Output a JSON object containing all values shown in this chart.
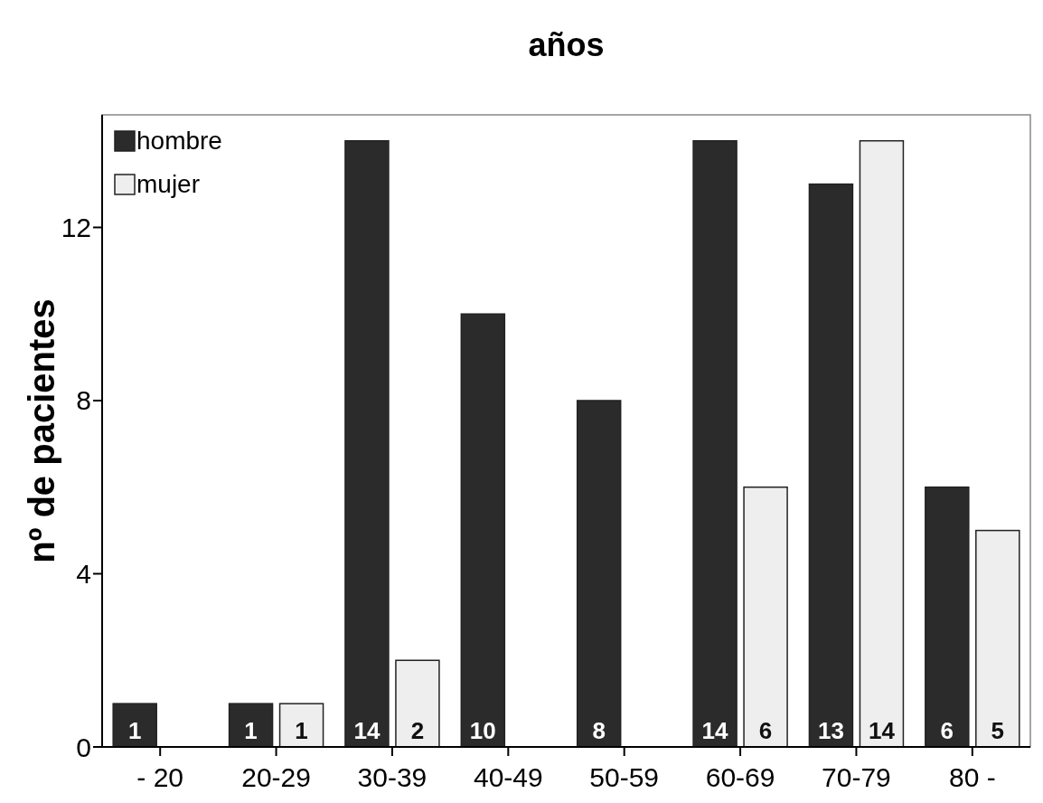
{
  "chart_data": {
    "type": "bar",
    "title": "años",
    "ylabel": "nº de pacientes",
    "categories": [
      "- 20",
      "20-29",
      "30-39",
      "40-49",
      "50-59",
      "60-69",
      "70-79",
      "80 -"
    ],
    "series": [
      {
        "name": "hombre",
        "color": "#2b2b2b",
        "values": [
          1,
          1,
          14,
          10,
          8,
          14,
          13,
          6
        ]
      },
      {
        "name": "mujer",
        "color": "#eeeeee",
        "values": [
          null,
          1,
          2,
          null,
          null,
          6,
          14,
          5
        ]
      }
    ],
    "ylim": [
      0,
      14.6
    ],
    "yticks": [
      0,
      4,
      8,
      12
    ],
    "grid": false,
    "legend": "top left",
    "data_labels": true
  }
}
